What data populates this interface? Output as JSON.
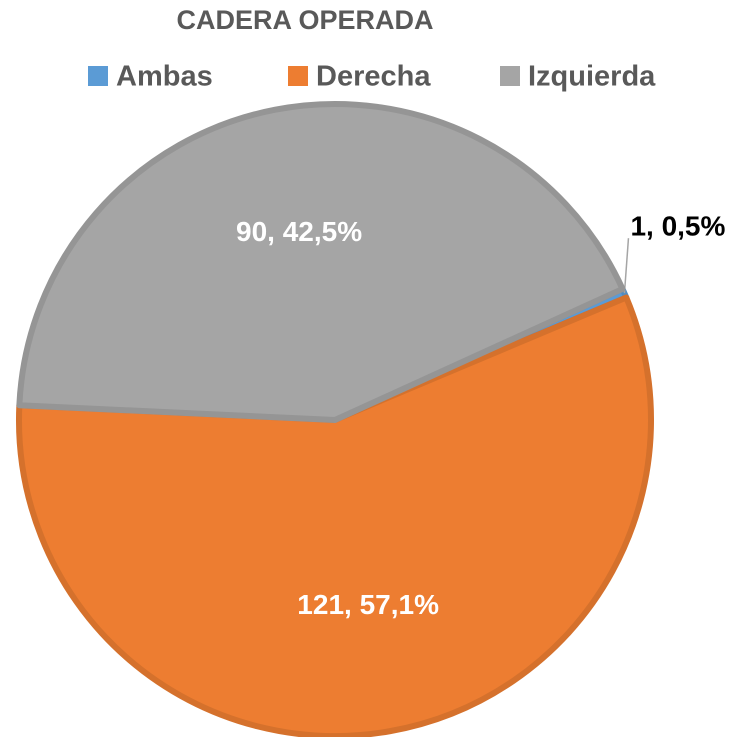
{
  "chart_data": {
    "type": "pie",
    "title": "CADERA OPERADA",
    "categories": [
      "Ambas",
      "Derecha",
      "Izquierda"
    ],
    "values": [
      1,
      121,
      90
    ],
    "value_labels": [
      "1, 0,5%",
      "121, 57,1%",
      "90, 42,5%"
    ],
    "colors": [
      "#5b9bd5",
      "#ed7d31",
      "#a5a5a5"
    ],
    "legend": "top"
  }
}
